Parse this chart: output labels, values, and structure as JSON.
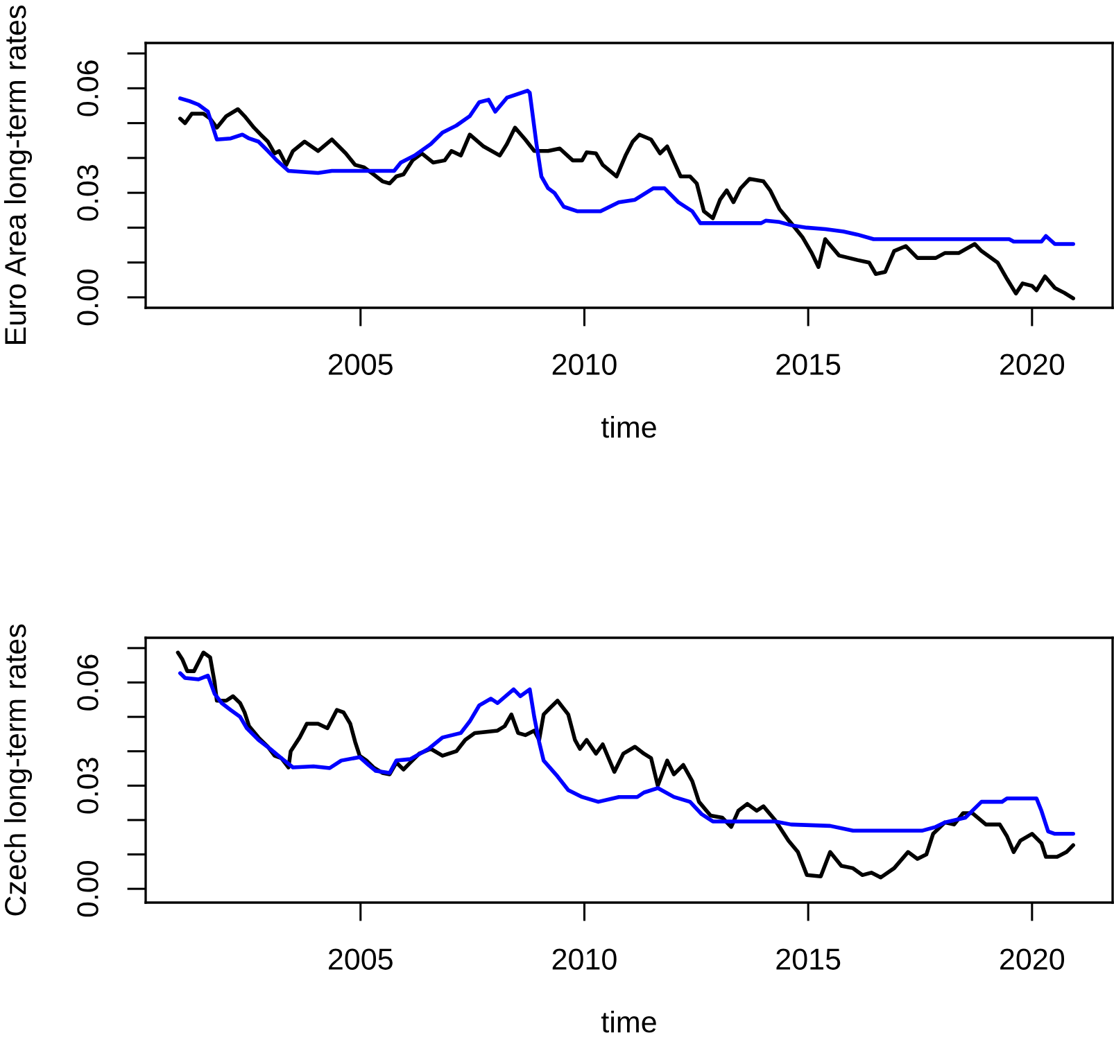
{
  "chart_data": [
    {
      "type": "line",
      "xlabel": "time",
      "ylabel": "Euro Area long-term rates",
      "xlim": [
        2000.2,
        2021.8
      ],
      "ylim": [
        -0.003,
        0.073
      ],
      "xticks": [
        2005,
        2010,
        2015,
        2020
      ],
      "yticks": [
        {
          "value": 0,
          "label": "0.00"
        },
        {
          "value": 0.01,
          "label": null
        },
        {
          "value": 0.02,
          "label": null
        },
        {
          "value": 0.03,
          "label": "0.03"
        },
        {
          "value": 0.04,
          "label": null
        },
        {
          "value": 0.05,
          "label": null
        },
        {
          "value": 0.06,
          "label": "0.06"
        },
        {
          "value": 0.07,
          "label": null
        }
      ],
      "series": [
        {
          "color": "#000000",
          "x": [
            2000.97,
            2001.08,
            2001.23,
            2001.49,
            2001.64,
            2001.79,
            2002.0,
            2002.26,
            2002.41,
            2002.62,
            2002.77,
            2002.93,
            2003.08,
            2003.18,
            2003.34,
            2003.49,
            2003.75,
            2004.05,
            2004.36,
            2004.67,
            2004.88,
            2005.08,
            2005.29,
            2005.49,
            2005.65,
            2005.8,
            2005.96,
            2006.16,
            2006.37,
            2006.62,
            2006.88,
            2007.03,
            2007.24,
            2007.44,
            2007.75,
            2008.11,
            2008.27,
            2008.45,
            2008.68,
            2008.88,
            2009.19,
            2009.45,
            2009.74,
            2009.95,
            2010.05,
            2010.26,
            2010.41,
            2010.72,
            2010.92,
            2011.08,
            2011.23,
            2011.49,
            2011.69,
            2011.85,
            2012.15,
            2012.36,
            2012.51,
            2012.67,
            2012.87,
            2013.03,
            2013.18,
            2013.33,
            2013.49,
            2013.69,
            2014.0,
            2014.15,
            2014.36,
            2014.62,
            2014.87,
            2015.08,
            2015.23,
            2015.38,
            2015.69,
            2016.1,
            2016.36,
            2016.51,
            2016.72,
            2016.92,
            2017.18,
            2017.44,
            2017.85,
            2018.05,
            2018.36,
            2018.72,
            2018.87,
            2019.23,
            2019.44,
            2019.64,
            2019.79,
            2020.0,
            2020.1,
            2020.29,
            2020.51,
            2020.72,
            2020.92
          ],
          "values": [
            0.0513,
            0.05,
            0.0527,
            0.0527,
            0.0513,
            0.0487,
            0.052,
            0.054,
            0.052,
            0.0487,
            0.0467,
            0.0447,
            0.0413,
            0.042,
            0.038,
            0.042,
            0.0447,
            0.042,
            0.0453,
            0.0413,
            0.038,
            0.0373,
            0.0353,
            0.0333,
            0.0327,
            0.0347,
            0.0353,
            0.0393,
            0.0413,
            0.0387,
            0.0393,
            0.042,
            0.0407,
            0.0467,
            0.0433,
            0.0407,
            0.044,
            0.0487,
            0.0453,
            0.042,
            0.042,
            0.0427,
            0.0393,
            0.0393,
            0.0416,
            0.0413,
            0.038,
            0.0347,
            0.0407,
            0.0447,
            0.0467,
            0.0453,
            0.0413,
            0.0433,
            0.0347,
            0.0347,
            0.0327,
            0.0247,
            0.0227,
            0.028,
            0.0307,
            0.0273,
            0.0313,
            0.034,
            0.0333,
            0.0307,
            0.0253,
            0.0213,
            0.0173,
            0.0127,
            0.0087,
            0.0167,
            0.012,
            0.0107,
            0.01,
            0.0067,
            0.0073,
            0.0133,
            0.0147,
            0.0113,
            0.0113,
            0.0127,
            0.0127,
            0.0153,
            0.0133,
            0.01,
            0.0053,
            0.0011,
            0.004,
            0.0033,
            0.002,
            0.006,
            0.0027,
            0.0013,
            -0.0003
          ]
        },
        {
          "color": "#0000ff",
          "x": [
            2000.97,
            2001.18,
            2001.38,
            2001.59,
            2001.74,
            2001.79,
            2002.1,
            2002.36,
            2002.51,
            2002.72,
            2002.93,
            2003.13,
            2003.39,
            2004.05,
            2004.36,
            2005.75,
            2005.9,
            2006.21,
            2006.57,
            2006.83,
            2007.14,
            2007.44,
            2007.65,
            2007.86,
            2008.01,
            2008.27,
            2008.73,
            2008.78,
            2008.93,
            2009.04,
            2009.19,
            2009.33,
            2009.54,
            2009.85,
            2010.36,
            2010.77,
            2011.13,
            2011.54,
            2011.79,
            2012.1,
            2012.41,
            2012.59,
            2013.95,
            2014.05,
            2014.36,
            2014.62,
            2014.97,
            2015.38,
            2015.79,
            2016.1,
            2016.46,
            2019.49,
            2019.59,
            2020.21,
            2020.31,
            2020.51,
            2020.92
          ],
          "values": [
            0.0571,
            0.0563,
            0.0553,
            0.0533,
            0.0473,
            0.0453,
            0.0456,
            0.0467,
            0.0456,
            0.0447,
            0.042,
            0.0393,
            0.0363,
            0.0357,
            0.0363,
            0.0363,
            0.0387,
            0.0407,
            0.044,
            0.0473,
            0.0493,
            0.052,
            0.056,
            0.0567,
            0.0533,
            0.0573,
            0.0593,
            0.0587,
            0.044,
            0.0347,
            0.0313,
            0.03,
            0.026,
            0.0247,
            0.0247,
            0.0273,
            0.028,
            0.0313,
            0.0313,
            0.0273,
            0.0247,
            0.0213,
            0.0213,
            0.022,
            0.0216,
            0.0207,
            0.02,
            0.0196,
            0.0189,
            0.018,
            0.0167,
            0.0167,
            0.016,
            0.016,
            0.0176,
            0.0153,
            0.0153
          ]
        }
      ]
    },
    {
      "type": "line",
      "xlabel": "time",
      "ylabel": "Czech long-term rates",
      "xlim": [
        2000.2,
        2021.8
      ],
      "ylim": [
        -0.004,
        0.073
      ],
      "xticks": [
        2005,
        2010,
        2015,
        2020
      ],
      "yticks": [
        {
          "value": 0,
          "label": "0.00"
        },
        {
          "value": 0.01,
          "label": null
        },
        {
          "value": 0.02,
          "label": null
        },
        {
          "value": 0.03,
          "label": "0.03"
        },
        {
          "value": 0.04,
          "label": null
        },
        {
          "value": 0.05,
          "label": null
        },
        {
          "value": 0.06,
          "label": "0.06"
        },
        {
          "value": 0.07,
          "label": null
        }
      ],
      "series": [
        {
          "color": "#000000",
          "x": [
            2000.92,
            2001.02,
            2001.13,
            2001.28,
            2001.49,
            2001.64,
            2001.74,
            2001.79,
            2002.0,
            2002.15,
            2002.31,
            2002.41,
            2002.51,
            2002.72,
            2002.93,
            2003.08,
            2003.23,
            2003.39,
            2003.44,
            2003.64,
            2003.8,
            2004.05,
            2004.26,
            2004.47,
            2004.62,
            2004.77,
            2004.88,
            2004.98,
            2005.13,
            2005.29,
            2005.49,
            2005.65,
            2005.8,
            2005.96,
            2006.11,
            2006.31,
            2006.57,
            2006.83,
            2007.14,
            2007.34,
            2007.55,
            2008.06,
            2008.22,
            2008.37,
            2008.52,
            2008.68,
            2008.88,
            2008.99,
            2009.09,
            2009.24,
            2009.4,
            2009.64,
            2009.79,
            2009.9,
            2010.05,
            2010.26,
            2010.41,
            2010.67,
            2010.87,
            2011.13,
            2011.33,
            2011.49,
            2011.64,
            2011.85,
            2012.0,
            2012.21,
            2012.41,
            2012.56,
            2012.82,
            2013.08,
            2013.28,
            2013.44,
            2013.64,
            2013.85,
            2014.0,
            2014.26,
            2014.56,
            2014.77,
            2014.97,
            2015.28,
            2015.49,
            2015.74,
            2016.0,
            2016.21,
            2016.41,
            2016.62,
            2016.92,
            2017.23,
            2017.44,
            2017.64,
            2017.79,
            2018.05,
            2018.26,
            2018.46,
            2018.67,
            2018.97,
            2019.28,
            2019.44,
            2019.59,
            2019.74,
            2020.0,
            2020.21,
            2020.31,
            2020.56,
            2020.77,
            2020.92
          ],
          "values": [
            0.0687,
            0.0667,
            0.0633,
            0.0633,
            0.0687,
            0.0673,
            0.06,
            0.0547,
            0.0547,
            0.056,
            0.054,
            0.0513,
            0.0473,
            0.044,
            0.0413,
            0.0387,
            0.038,
            0.0353,
            0.04,
            0.044,
            0.048,
            0.048,
            0.0467,
            0.052,
            0.0513,
            0.048,
            0.0427,
            0.0387,
            0.0373,
            0.0353,
            0.0337,
            0.0333,
            0.0367,
            0.0347,
            0.0367,
            0.0393,
            0.0407,
            0.0387,
            0.04,
            0.0433,
            0.0453,
            0.046,
            0.0473,
            0.0507,
            0.0453,
            0.0447,
            0.046,
            0.0433,
            0.0507,
            0.0527,
            0.0547,
            0.0507,
            0.0433,
            0.0407,
            0.0433,
            0.0393,
            0.042,
            0.034,
            0.0393,
            0.0413,
            0.0393,
            0.038,
            0.03,
            0.0373,
            0.0333,
            0.036,
            0.0313,
            0.0253,
            0.0213,
            0.0207,
            0.018,
            0.0227,
            0.0247,
            0.0227,
            0.024,
            0.02,
            0.014,
            0.0107,
            0.004,
            0.0036,
            0.0107,
            0.0067,
            0.006,
            0.004,
            0.0047,
            0.0033,
            0.006,
            0.0107,
            0.0087,
            0.01,
            0.016,
            0.0193,
            0.0187,
            0.022,
            0.022,
            0.0187,
            0.0187,
            0.0153,
            0.0107,
            0.014,
            0.016,
            0.0133,
            0.0093,
            0.0093,
            0.0107,
            0.0127
          ]
        },
        {
          "color": "#0000ff",
          "x": [
            2000.97,
            2001.08,
            2001.38,
            2001.59,
            2001.74,
            2001.9,
            2002.1,
            2002.31,
            2002.46,
            2002.72,
            2002.98,
            2003.23,
            2003.49,
            2003.95,
            2004.31,
            2004.57,
            2004.98,
            2005.18,
            2005.34,
            2005.65,
            2005.8,
            2006.11,
            2006.52,
            2006.83,
            2007.24,
            2007.44,
            2007.65,
            2007.91,
            2008.06,
            2008.42,
            2008.57,
            2008.78,
            2008.88,
            2008.99,
            2009.09,
            2009.4,
            2009.64,
            2009.95,
            2010.31,
            2010.77,
            2011.18,
            2011.33,
            2011.64,
            2012.0,
            2012.36,
            2012.62,
            2012.87,
            2014.26,
            2014.62,
            2015.49,
            2016.0,
            2017.54,
            2017.85,
            2018.05,
            2018.51,
            2018.87,
            2019.33,
            2019.44,
            2020.1,
            2020.21,
            2020.36,
            2020.51,
            2020.92
          ],
          "values": [
            0.0627,
            0.0613,
            0.0609,
            0.062,
            0.0567,
            0.054,
            0.052,
            0.05,
            0.0467,
            0.0433,
            0.0407,
            0.038,
            0.0353,
            0.0356,
            0.0351,
            0.0373,
            0.0383,
            0.036,
            0.0343,
            0.0337,
            0.0373,
            0.0377,
            0.0407,
            0.044,
            0.0453,
            0.0487,
            0.0533,
            0.0553,
            0.054,
            0.058,
            0.056,
            0.058,
            0.05,
            0.0427,
            0.0373,
            0.0327,
            0.0287,
            0.0267,
            0.0253,
            0.0267,
            0.0267,
            0.028,
            0.0293,
            0.0267,
            0.0253,
            0.0217,
            0.0196,
            0.0196,
            0.0187,
            0.0183,
            0.0169,
            0.0169,
            0.018,
            0.0193,
            0.0207,
            0.0253,
            0.0253,
            0.0263,
            0.0263,
            0.0227,
            0.0167,
            0.016,
            0.016
          ]
        }
      ]
    }
  ]
}
